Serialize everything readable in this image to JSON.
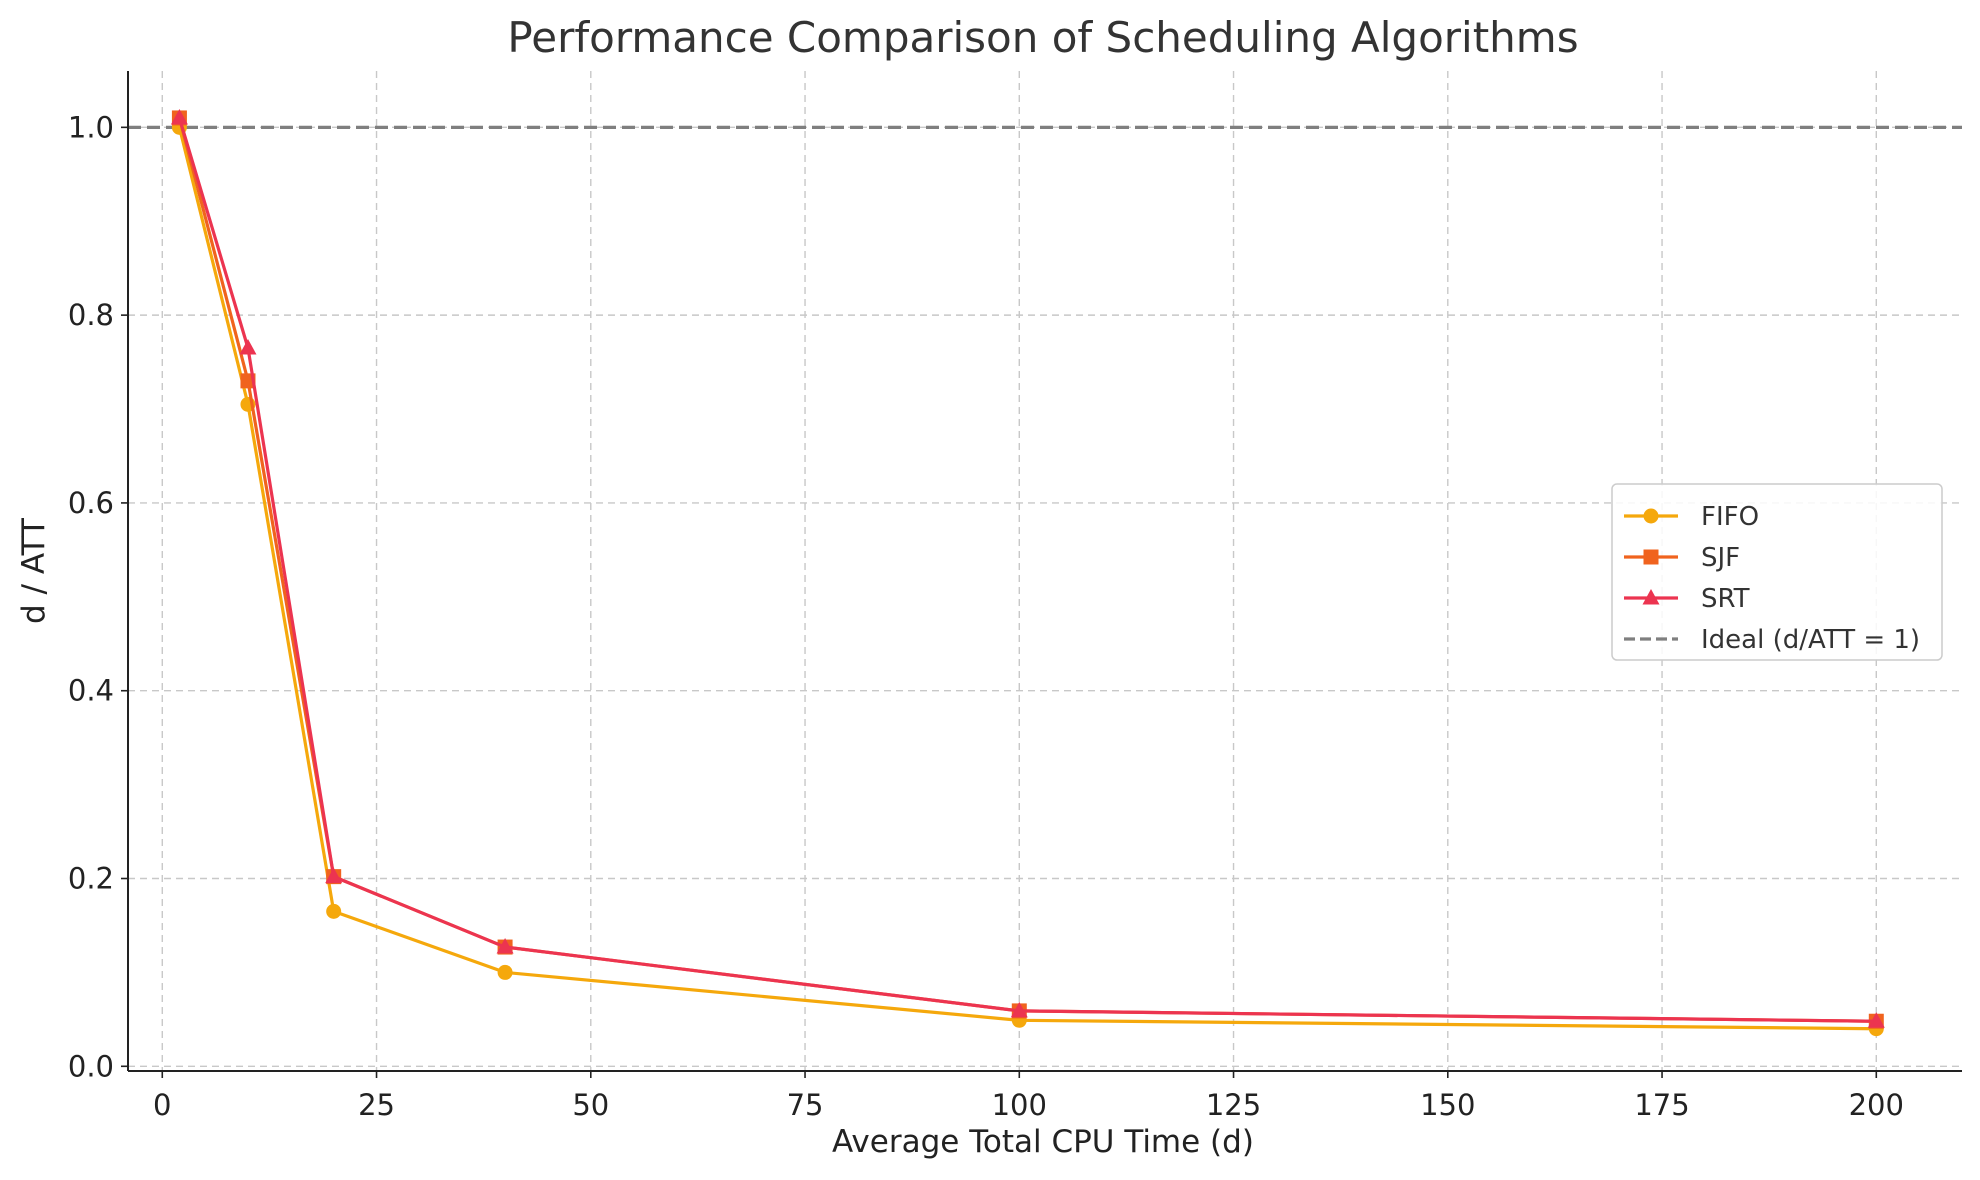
{
  "chart_data": {
    "type": "line",
    "title": "Performance Comparison of Scheduling Algorithms",
    "xlabel": "Average Total CPU Time (d)",
    "ylabel": "d / ATT",
    "xlim": [
      -4,
      210
    ],
    "ylim": [
      -0.005,
      1.06
    ],
    "x_ticks": [
      0,
      25,
      50,
      75,
      100,
      125,
      150,
      175,
      200
    ],
    "y_ticks": [
      0.0,
      0.2,
      0.4,
      0.6,
      0.8,
      1.0
    ],
    "grid": true,
    "legend_position": "center-right",
    "x": [
      2,
      10,
      20,
      40,
      100,
      200
    ],
    "series": [
      {
        "name": "FIFO",
        "color": "#F5A80C",
        "marker": "circle",
        "values": [
          1.0,
          0.705,
          0.165,
          0.1,
          0.049,
          0.04
        ]
      },
      {
        "name": "SJF",
        "color": "#F0631E",
        "marker": "square",
        "values": [
          1.01,
          0.73,
          0.202,
          0.127,
          0.059,
          0.048
        ]
      },
      {
        "name": "SRT",
        "color": "#EC3450",
        "marker": "triangle",
        "values": [
          1.01,
          0.765,
          0.202,
          0.127,
          0.059,
          0.048
        ]
      }
    ],
    "reference_line": {
      "name": "Ideal (d/ATT = 1)",
      "y": 1.0,
      "color": "#7f7f7f",
      "style": "dashed"
    }
  }
}
